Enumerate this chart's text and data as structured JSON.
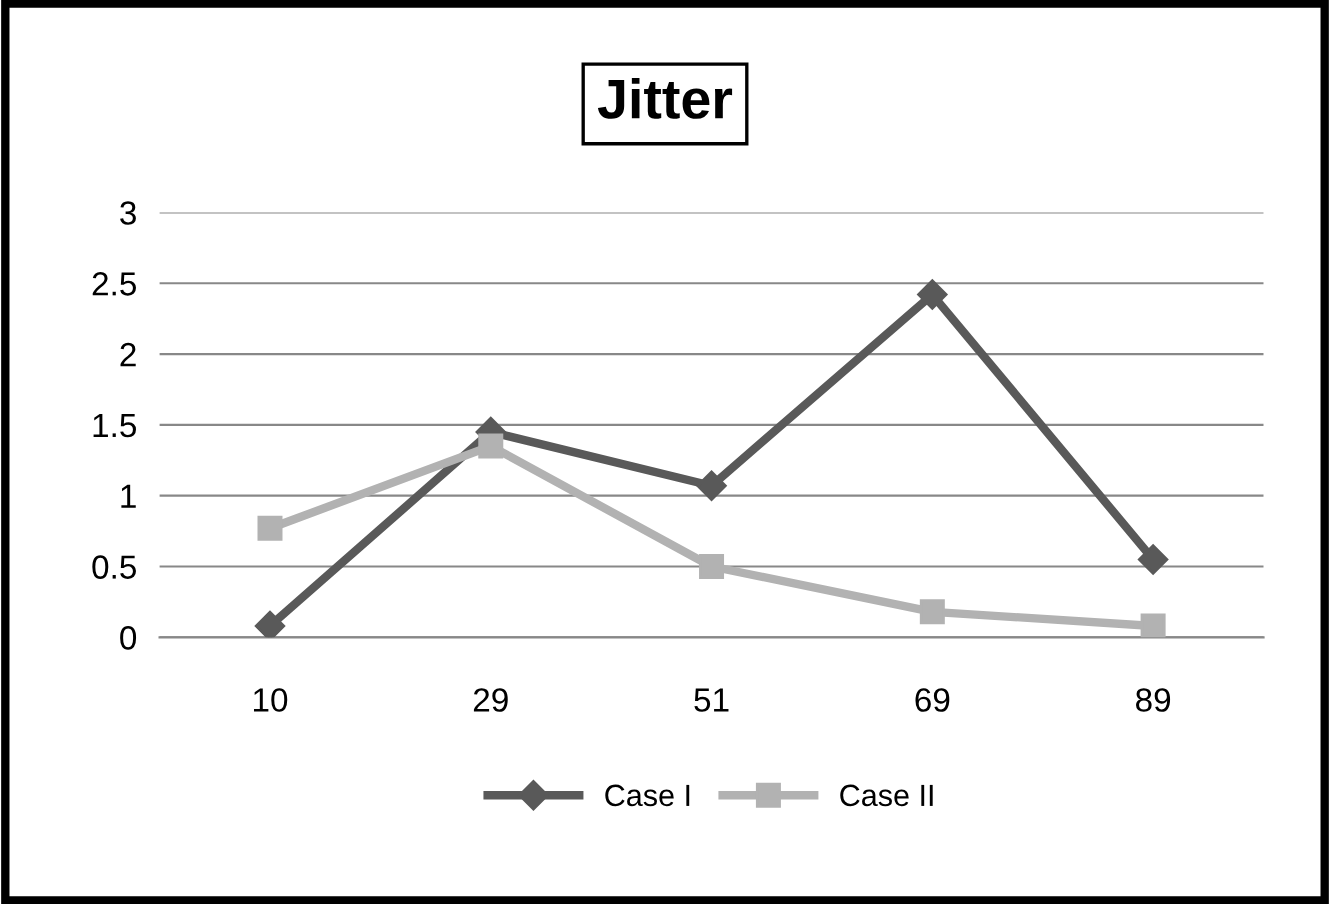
{
  "chart_data": {
    "type": "line",
    "title": "Jitter",
    "categories": [
      "10",
      "29",
      "51",
      "69",
      "89"
    ],
    "series": [
      {
        "name": "Case I",
        "color": "#595959",
        "marker": "diamond",
        "values": [
          0.08,
          1.45,
          1.07,
          2.42,
          0.55
        ]
      },
      {
        "name": "Case II",
        "color": "#b2b2b2",
        "marker": "square",
        "values": [
          0.77,
          1.35,
          0.5,
          0.18,
          0.08
        ]
      }
    ],
    "ylim": [
      0,
      3
    ],
    "yticks": [
      0,
      0.5,
      1,
      1.5,
      2,
      2.5,
      3
    ],
    "grid": "y",
    "legend": "bottom",
    "line_style": "solid"
  }
}
